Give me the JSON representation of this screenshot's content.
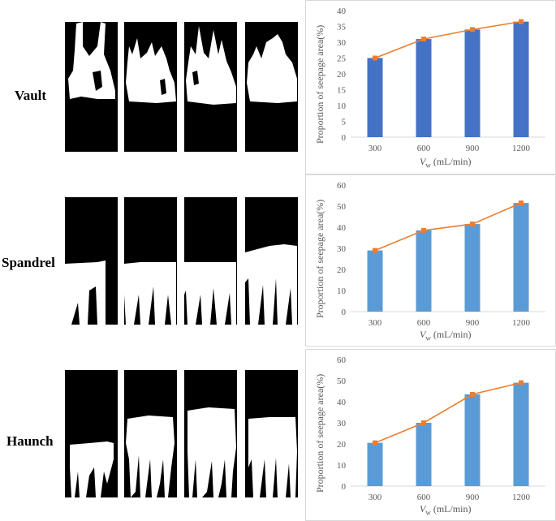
{
  "rows": [
    {
      "label": "Vault"
    },
    {
      "label": "Spandrel"
    },
    {
      "label": "Haunch"
    }
  ],
  "colors": {
    "bar_vault": "#4472c4",
    "bar_other": "#5b9bd5",
    "line": "#ed7d31",
    "axis": "#d9d9d9",
    "text": "#595959"
  },
  "x_axis_label": {
    "v": "V",
    "sub": "w",
    "rest": " (mL/min)"
  },
  "y_axis_label": "Proportion of seepage area(%)",
  "chart_data": [
    {
      "type": "bar",
      "title": "Vault",
      "categories": [
        "300",
        "600",
        "900",
        "1200"
      ],
      "values": [
        25,
        31,
        34,
        36.5
      ],
      "overlay_line": true,
      "ylim": [
        0,
        40
      ],
      "ystep": 5,
      "xlabel": "Vw (mL/min)",
      "ylabel": "Proportion of seepage area(%)"
    },
    {
      "type": "bar",
      "title": "Spandrel",
      "categories": [
        "300",
        "600",
        "900",
        "1200"
      ],
      "values": [
        29,
        38.5,
        41.5,
        51.5
      ],
      "overlay_line": true,
      "ylim": [
        0,
        60
      ],
      "ystep": 10,
      "xlabel": "Vw (mL/min)",
      "ylabel": "Proportion of seepage area(%)"
    },
    {
      "type": "bar",
      "title": "Haunch",
      "categories": [
        "300",
        "600",
        "900",
        "1200"
      ],
      "values": [
        20.5,
        30,
        43.5,
        49
      ],
      "overlay_line": true,
      "ylim": [
        0,
        60
      ],
      "ystep": 10,
      "xlabel": "Vw (mL/min)",
      "ylabel": "Proportion of seepage area(%)"
    }
  ]
}
